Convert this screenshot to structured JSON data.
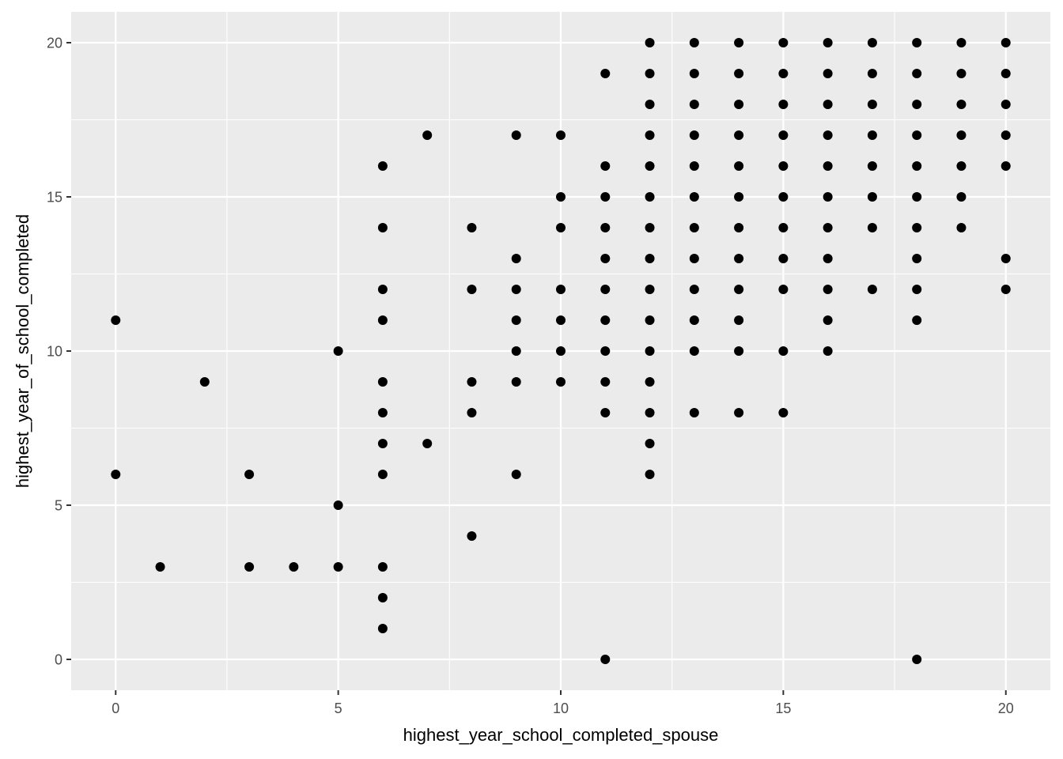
{
  "chart_data": {
    "type": "scatter",
    "title": "",
    "xlabel": "highest_year_school_completed_spouse",
    "ylabel": "highest_year_of_school_completed",
    "xlim": [
      -1,
      21
    ],
    "ylim": [
      -1,
      21
    ],
    "x_ticks": [
      0,
      5,
      10,
      15,
      20
    ],
    "y_ticks": [
      0,
      5,
      10,
      15,
      20
    ],
    "x_tick_labels": [
      "0",
      "5",
      "10",
      "15",
      "20"
    ],
    "y_tick_labels": [
      "0",
      "5",
      "10",
      "15",
      "20"
    ],
    "grid": true,
    "background": "#ebebeb",
    "grid_color": "#ffffff",
    "point_color": "#000000",
    "points": [
      [
        0,
        11
      ],
      [
        0,
        6
      ],
      [
        1,
        3
      ],
      [
        2,
        9
      ],
      [
        3,
        6
      ],
      [
        3,
        3
      ],
      [
        4,
        3
      ],
      [
        5,
        10
      ],
      [
        5,
        5
      ],
      [
        5,
        3
      ],
      [
        6,
        16
      ],
      [
        6,
        14
      ],
      [
        6,
        12
      ],
      [
        6,
        11
      ],
      [
        6,
        9
      ],
      [
        6,
        8
      ],
      [
        6,
        7
      ],
      [
        6,
        6
      ],
      [
        6,
        3
      ],
      [
        6,
        2
      ],
      [
        6,
        1
      ],
      [
        7,
        17
      ],
      [
        7,
        7
      ],
      [
        8,
        14
      ],
      [
        8,
        12
      ],
      [
        8,
        9
      ],
      [
        8,
        8
      ],
      [
        8,
        4
      ],
      [
        9,
        17
      ],
      [
        9,
        13
      ],
      [
        9,
        12
      ],
      [
        9,
        11
      ],
      [
        9,
        10
      ],
      [
        9,
        9
      ],
      [
        9,
        6
      ],
      [
        10,
        17
      ],
      [
        10,
        15
      ],
      [
        10,
        14
      ],
      [
        10,
        12
      ],
      [
        10,
        11
      ],
      [
        10,
        10
      ],
      [
        10,
        9
      ],
      [
        11,
        19
      ],
      [
        11,
        16
      ],
      [
        11,
        15
      ],
      [
        11,
        14
      ],
      [
        11,
        13
      ],
      [
        11,
        12
      ],
      [
        11,
        11
      ],
      [
        11,
        10
      ],
      [
        11,
        9
      ],
      [
        11,
        8
      ],
      [
        11,
        0
      ],
      [
        12,
        20
      ],
      [
        12,
        19
      ],
      [
        12,
        18
      ],
      [
        12,
        17
      ],
      [
        12,
        16
      ],
      [
        12,
        15
      ],
      [
        12,
        14
      ],
      [
        12,
        13
      ],
      [
        12,
        12
      ],
      [
        12,
        11
      ],
      [
        12,
        10
      ],
      [
        12,
        9
      ],
      [
        12,
        8
      ],
      [
        12,
        7
      ],
      [
        12,
        6
      ],
      [
        13,
        20
      ],
      [
        13,
        19
      ],
      [
        13,
        18
      ],
      [
        13,
        17
      ],
      [
        13,
        16
      ],
      [
        13,
        15
      ],
      [
        13,
        14
      ],
      [
        13,
        13
      ],
      [
        13,
        12
      ],
      [
        13,
        11
      ],
      [
        13,
        10
      ],
      [
        13,
        8
      ],
      [
        14,
        20
      ],
      [
        14,
        19
      ],
      [
        14,
        18
      ],
      [
        14,
        17
      ],
      [
        14,
        16
      ],
      [
        14,
        15
      ],
      [
        14,
        14
      ],
      [
        14,
        13
      ],
      [
        14,
        12
      ],
      [
        14,
        11
      ],
      [
        14,
        10
      ],
      [
        14,
        8
      ],
      [
        15,
        20
      ],
      [
        15,
        19
      ],
      [
        15,
        18
      ],
      [
        15,
        17
      ],
      [
        15,
        16
      ],
      [
        15,
        15
      ],
      [
        15,
        14
      ],
      [
        15,
        13
      ],
      [
        15,
        12
      ],
      [
        15,
        10
      ],
      [
        15,
        8
      ],
      [
        16,
        20
      ],
      [
        16,
        19
      ],
      [
        16,
        18
      ],
      [
        16,
        17
      ],
      [
        16,
        16
      ],
      [
        16,
        15
      ],
      [
        16,
        14
      ],
      [
        16,
        13
      ],
      [
        16,
        12
      ],
      [
        16,
        11
      ],
      [
        16,
        10
      ],
      [
        17,
        20
      ],
      [
        17,
        19
      ],
      [
        17,
        18
      ],
      [
        17,
        17
      ],
      [
        17,
        16
      ],
      [
        17,
        15
      ],
      [
        17,
        14
      ],
      [
        17,
        12
      ],
      [
        18,
        20
      ],
      [
        18,
        19
      ],
      [
        18,
        18
      ],
      [
        18,
        17
      ],
      [
        18,
        16
      ],
      [
        18,
        15
      ],
      [
        18,
        14
      ],
      [
        18,
        13
      ],
      [
        18,
        12
      ],
      [
        18,
        11
      ],
      [
        18,
        0
      ],
      [
        19,
        20
      ],
      [
        19,
        19
      ],
      [
        19,
        18
      ],
      [
        19,
        17
      ],
      [
        19,
        16
      ],
      [
        19,
        15
      ],
      [
        19,
        14
      ],
      [
        20,
        20
      ],
      [
        20,
        19
      ],
      [
        20,
        18
      ],
      [
        20,
        17
      ],
      [
        20,
        16
      ],
      [
        20,
        13
      ],
      [
        20,
        12
      ]
    ]
  }
}
